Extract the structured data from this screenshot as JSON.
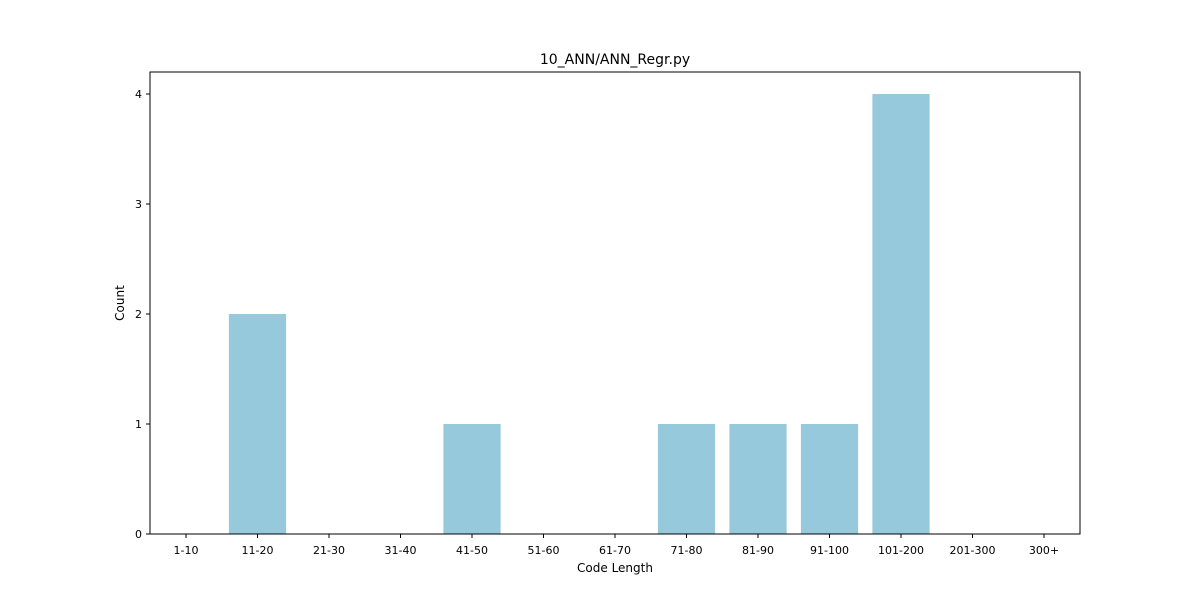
{
  "chart_data": {
    "type": "bar",
    "title": "10_ANN/ANN_Regr.py",
    "xlabel": "Code Length",
    "ylabel": "Count",
    "categories": [
      "1-10",
      "11-20",
      "21-30",
      "31-40",
      "41-50",
      "51-60",
      "61-70",
      "71-80",
      "81-90",
      "91-100",
      "101-200",
      "201-300",
      "300+"
    ],
    "values": [
      0,
      2,
      0,
      0,
      1,
      0,
      0,
      1,
      1,
      1,
      4,
      0,
      0
    ],
    "ylim": [
      0,
      4.2
    ],
    "yticks": [
      0,
      1,
      2,
      3,
      4
    ],
    "grid": false,
    "bar_color": "#96c9dc"
  }
}
